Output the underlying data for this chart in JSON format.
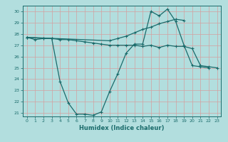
{
  "xlabel": "Humidex (Indice chaleur)",
  "xlim": [
    -0.5,
    23.5
  ],
  "ylim": [
    20.7,
    30.5
  ],
  "yticks": [
    21,
    22,
    23,
    24,
    25,
    26,
    27,
    28,
    29,
    30
  ],
  "xticks": [
    0,
    1,
    2,
    3,
    4,
    5,
    6,
    7,
    8,
    9,
    10,
    11,
    12,
    13,
    14,
    15,
    16,
    17,
    18,
    19,
    20,
    21,
    22,
    23
  ],
  "bg_color": "#b2dede",
  "grid_color": "#d4a0a0",
  "line_color": "#1a6b6b",
  "line1_x": [
    0,
    1,
    2,
    3,
    4,
    5,
    6,
    7,
    8,
    9,
    10,
    11,
    12,
    13,
    14,
    15,
    16,
    17,
    18,
    19,
    20,
    21,
    22
  ],
  "line1_y": [
    27.7,
    27.5,
    27.6,
    27.6,
    23.8,
    21.9,
    20.9,
    20.9,
    20.8,
    21.1,
    22.9,
    24.5,
    26.3,
    27.1,
    27.1,
    30.0,
    29.6,
    30.2,
    29.1,
    27.0,
    25.2,
    25.1,
    25.0
  ],
  "line2_x": [
    0,
    2,
    3,
    4,
    5,
    6,
    7,
    8,
    9,
    10,
    11,
    12,
    13,
    14,
    15,
    16,
    17,
    18,
    19,
    20,
    21,
    22,
    23
  ],
  "line2_y": [
    27.7,
    27.6,
    27.6,
    27.5,
    27.5,
    27.4,
    27.3,
    27.2,
    27.1,
    27.0,
    27.0,
    27.0,
    27.0,
    26.9,
    27.0,
    26.8,
    27.0,
    26.9,
    26.9,
    26.7,
    25.2,
    25.1,
    25.0
  ],
  "line3_x": [
    0,
    10,
    11,
    12,
    13,
    14,
    15,
    16,
    17,
    18,
    19
  ],
  "line3_y": [
    27.7,
    27.4,
    27.6,
    27.8,
    28.1,
    28.4,
    28.6,
    28.9,
    29.1,
    29.3,
    29.2
  ]
}
